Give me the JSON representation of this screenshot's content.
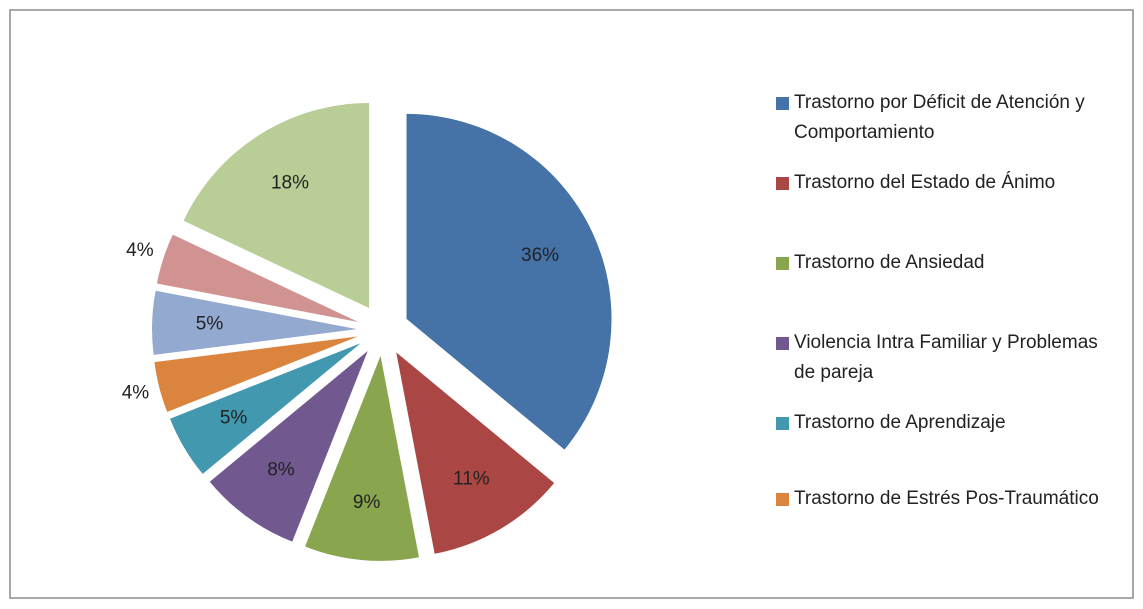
{
  "chart_data": {
    "type": "pie",
    "categories": [
      "Trastorno por Déficit de Atención y Comportamiento",
      "Trastorno del Estado de Ánimo",
      "Trastorno de Ansiedad",
      "Violencia Intra Familiar y Problemas de pareja",
      "Trastorno de Aprendizaje",
      "Trastorno de Estrés Pos-Traumático",
      null,
      null,
      null
    ],
    "values": [
      36,
      11,
      9,
      8,
      5,
      4,
      5,
      4,
      18
    ],
    "value_labels": [
      "36%",
      "11%",
      "9%",
      "8%",
      "5%",
      "4%",
      "5%",
      "4%",
      "18%"
    ],
    "colors": [
      "#4572a7",
      "#aa4643",
      "#89a54e",
      "#71588f",
      "#4198af",
      "#db843d",
      "#93a9cf",
      "#d19392",
      "#b9cd96"
    ],
    "legend": "right"
  }
}
